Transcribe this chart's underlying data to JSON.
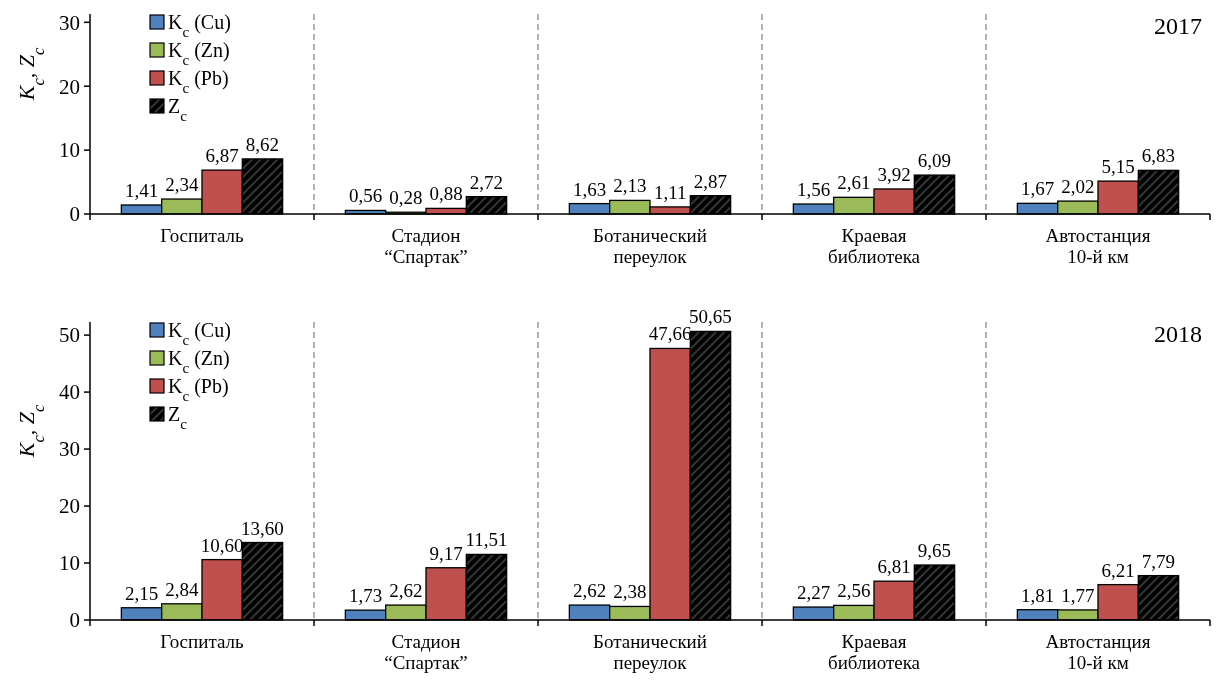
{
  "chart_data": [
    {
      "type": "bar",
      "ylabel": "K$_{c}$, Z$_{c}$",
      "categories": [
        "Госпиталь",
        "Стадион\n“Спартак”",
        "Ботанический\nпереулок",
        "Краевая\nбиблиотека",
        "Автостанция\n10-й км"
      ],
      "series": [
        {
          "name": "K$_{c}$ (Cu)",
          "color": "#4f81bd",
          "values": [
            1.41,
            0.56,
            1.63,
            1.56,
            1.67
          ],
          "value_labels": [
            "1,41",
            "0,56",
            "1,63",
            "1,56",
            "1,67"
          ]
        },
        {
          "name": "K$_{c}$ (Zn)",
          "color": "#9bbb59",
          "values": [
            2.34,
            0.28,
            2.13,
            2.61,
            2.02
          ],
          "value_labels": [
            "2,34",
            "0,28",
            "2,13",
            "2,61",
            "2,02"
          ]
        },
        {
          "name": "K$_{c}$ (Pb)",
          "color": "#c0504d",
          "values": [
            6.87,
            0.88,
            1.11,
            3.92,
            5.15
          ],
          "value_labels": [
            "6,87",
            "0,88",
            "1,11",
            "3,92",
            "5,15"
          ]
        },
        {
          "name": "Z$_{c}$",
          "color": "#000000",
          "values": [
            8.62,
            2.72,
            2.87,
            6.09,
            6.83
          ],
          "value_labels": [
            "8,62",
            "2,72",
            "2,87",
            "6,09",
            "6,83"
          ]
        }
      ],
      "ylim": [
        0,
        31.3
      ],
      "yticks": [
        0,
        10,
        20,
        30
      ],
      "grid": false,
      "legend": "top left",
      "annotations": [
        "2017"
      ]
    },
    {
      "type": "bar",
      "ylabel": "K$_{c}$, Z$_{c}$",
      "categories": [
        "Госпиталь",
        "Стадион\n“Спартак”",
        "Ботанический\nпереулок",
        "Краевая\nбиблиотека",
        "Автостанция\n10-й км"
      ],
      "series": [
        {
          "name": "K$_{c}$ (Cu)",
          "color": "#4f81bd",
          "values": [
            2.15,
            1.73,
            2.62,
            2.27,
            1.81
          ],
          "value_labels": [
            "2,15",
            "1,73",
            "2,62",
            "2,27",
            "1,81"
          ]
        },
        {
          "name": "K$_{c}$ (Zn)",
          "color": "#9bbb59",
          "values": [
            2.84,
            2.62,
            2.38,
            2.56,
            1.77
          ],
          "value_labels": [
            "2,84",
            "2,62",
            "2,38",
            "2,56",
            "1,77"
          ]
        },
        {
          "name": "K$_{c}$ (Pb)",
          "color": "#c0504d",
          "values": [
            10.6,
            9.17,
            47.66,
            6.81,
            6.21
          ],
          "value_labels": [
            "10,60",
            "9,17",
            "47,66",
            "6,81",
            "6,21"
          ]
        },
        {
          "name": "Z$_{c}$",
          "color": "#000000",
          "values": [
            13.6,
            11.51,
            50.65,
            9.65,
            7.79
          ],
          "value_labels": [
            "13,60",
            "11,51",
            "50,65",
            "9,65",
            "7,79"
          ]
        }
      ],
      "ylim": [
        0,
        52.3
      ],
      "yticks": [
        0,
        10,
        20,
        30,
        40,
        50
      ],
      "grid": false,
      "legend": "top left",
      "annotations": [
        "2018"
      ]
    }
  ]
}
